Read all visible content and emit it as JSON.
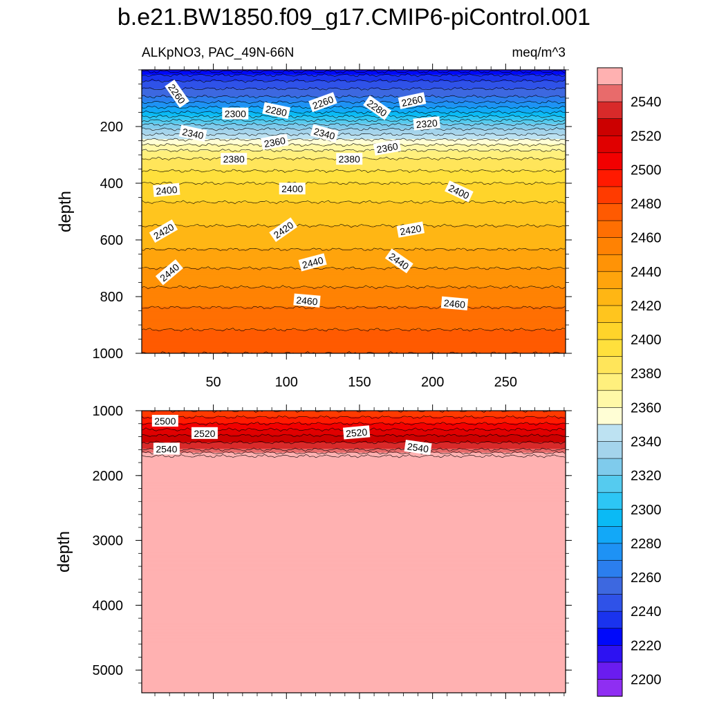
{
  "chart_data": {
    "type": "heatmap",
    "title": "b.e21.BW1850.f09_g17.CMIP6-piControl.001",
    "subtitle_left": "ALKpNO3, PAC_49N-66N",
    "subtitle_right": "meq/m^3",
    "ylabel": "depth",
    "x_ticks": [
      "50",
      "100",
      "150",
      "200",
      "250"
    ],
    "x_range": [
      1,
      291
    ],
    "panels": [
      {
        "name": "upper",
        "ylim": [
          0,
          1000
        ],
        "y_ticks": [
          "200",
          "400",
          "600",
          "800",
          "1000"
        ],
        "contour_labels": [
          {
            "text": "2260",
            "x": 25,
            "y": 85,
            "rot": 55
          },
          {
            "text": "2300",
            "x": 65,
            "y": 155,
            "rot": 0
          },
          {
            "text": "2280",
            "x": 93,
            "y": 145,
            "rot": 12
          },
          {
            "text": "2260",
            "x": 125,
            "y": 115,
            "rot": -20
          },
          {
            "text": "2280",
            "x": 162,
            "y": 135,
            "rot": 35
          },
          {
            "text": "2260",
            "x": 186,
            "y": 110,
            "rot": -12
          },
          {
            "text": "2340",
            "x": 36,
            "y": 225,
            "rot": 12
          },
          {
            "text": "2360",
            "x": 92,
            "y": 255,
            "rot": -10
          },
          {
            "text": "2340",
            "x": 126,
            "y": 225,
            "rot": 15
          },
          {
            "text": "2320",
            "x": 196,
            "y": 190,
            "rot": -5
          },
          {
            "text": "2360",
            "x": 169,
            "y": 275,
            "rot": -10
          },
          {
            "text": "2380",
            "x": 64,
            "y": 315,
            "rot": 0
          },
          {
            "text": "2380",
            "x": 143,
            "y": 315,
            "rot": 0
          },
          {
            "text": "2400",
            "x": 18,
            "y": 425,
            "rot": -5
          },
          {
            "text": "2400",
            "x": 104,
            "y": 420,
            "rot": 0
          },
          {
            "text": "2400",
            "x": 218,
            "y": 430,
            "rot": 25
          },
          {
            "text": "2420",
            "x": 16,
            "y": 570,
            "rot": -30
          },
          {
            "text": "2420",
            "x": 98,
            "y": 565,
            "rot": -35
          },
          {
            "text": "2420",
            "x": 185,
            "y": 565,
            "rot": -10
          },
          {
            "text": "2440",
            "x": 20,
            "y": 715,
            "rot": -40
          },
          {
            "text": "2440",
            "x": 118,
            "y": 680,
            "rot": -15
          },
          {
            "text": "2440",
            "x": 177,
            "y": 675,
            "rot": 35
          },
          {
            "text": "2460",
            "x": 114,
            "y": 815,
            "rot": 5
          },
          {
            "text": "2460",
            "x": 215,
            "y": 825,
            "rot": 5
          }
        ]
      },
      {
        "name": "lower",
        "ylim": [
          1000,
          5350
        ],
        "y_ticks": [
          "1000",
          "2000",
          "3000",
          "4000",
          "5000"
        ],
        "contour_labels": [
          {
            "text": "2500",
            "x": 17,
            "y": 1160,
            "rot": 0
          },
          {
            "text": "2520",
            "x": 44,
            "y": 1350,
            "rot": 0
          },
          {
            "text": "2520",
            "x": 148,
            "y": 1340,
            "rot": -5
          },
          {
            "text": "2540",
            "x": 18,
            "y": 1590,
            "rot": 0
          },
          {
            "text": "2540",
            "x": 190,
            "y": 1570,
            "rot": 8
          }
        ]
      }
    ],
    "profile": {
      "depths": [
        0,
        25,
        100,
        150,
        200,
        250,
        280,
        300,
        400,
        500,
        600,
        700,
        800,
        900,
        1000,
        1200,
        1400,
        1600,
        1700,
        5350
      ],
      "values": [
        2215,
        2235,
        2262,
        2290,
        2325,
        2352,
        2368,
        2377,
        2400,
        2415,
        2425,
        2440,
        2455,
        2468,
        2480,
        2500,
        2522,
        2540,
        2560,
        2560
      ]
    },
    "colorbar": {
      "labels": [
        "2540",
        "2520",
        "2500",
        "2480",
        "2460",
        "2440",
        "2420",
        "2400",
        "2380",
        "2360",
        "2340",
        "2320",
        "2300",
        "2280",
        "2260",
        "2240",
        "2220",
        "2200"
      ],
      "levels_low": 2190,
      "level_step": 10,
      "colors": [
        "#8f2ef2",
        "#6a1cf0",
        "#2d12f2",
        "#0009fa",
        "#1a33ee",
        "#2f52e8",
        "#3d68e0",
        "#2b7eee",
        "#1e92f5",
        "#12a8f8",
        "#0abaf5",
        "#2dc6f5",
        "#55cbef",
        "#7fcbec",
        "#a4d4ec",
        "#bde2f2",
        "#fffed5",
        "#fff8a7",
        "#fff07d",
        "#ffe55a",
        "#ffe03c",
        "#ffd42a",
        "#ffc51e",
        "#ffb614",
        "#ffa40c",
        "#ff9306",
        "#ff8203",
        "#ff6f02",
        "#ff5a01",
        "#ff3b00",
        "#ff1a00",
        "#f20000",
        "#e00000",
        "#cc0000",
        "#d82a2a",
        "#e86b6b",
        "#ffb1b1"
      ]
    }
  }
}
